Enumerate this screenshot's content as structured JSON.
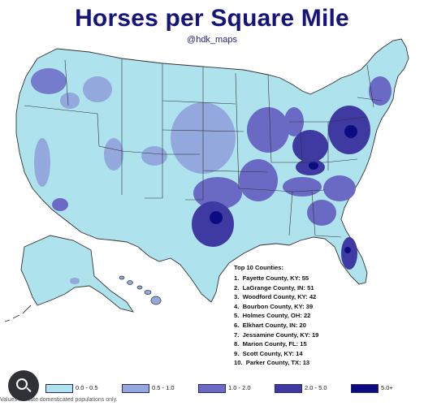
{
  "title": "Horses per Square Mile",
  "handle": "@hdk_maps",
  "top10": {
    "heading": "Top 10 Counties:",
    "items": [
      {
        "rank": "1.",
        "text": "Fayette County, KY: 55"
      },
      {
        "rank": "2.",
        "text": "LaGrange County, IN: 51"
      },
      {
        "rank": "3.",
        "text": "Woodford County, KY: 42"
      },
      {
        "rank": "4.",
        "text": "Bourbon County, KY: 39"
      },
      {
        "rank": "5.",
        "text": "Holmes County, OH: 22"
      },
      {
        "rank": "6.",
        "text": "Elkhart County, IN: 20"
      },
      {
        "rank": "7.",
        "text": "Jessamine County, KY: 19"
      },
      {
        "rank": "8.",
        "text": "Marion County, FL: 15"
      },
      {
        "rank": "9.",
        "text": "Scott County, KY: 14"
      },
      {
        "rank": "10.",
        "text": "Parker County, TX: 13"
      }
    ]
  },
  "legend": [
    {
      "label": "0.0 - 0.5",
      "color": "#aee3ee"
    },
    {
      "label": "0.5 - 1.0",
      "color": "#93a8dc"
    },
    {
      "label": "1.0 - 2.0",
      "color": "#6a6ac4"
    },
    {
      "label": "2.0 - 5.0",
      "color": "#3f3aa2"
    },
    {
      "label": "5.0+",
      "color": "#0c0c82"
    }
  ],
  "note": "Values indicate domesticated populations only.",
  "colors": {
    "title": "#14147a",
    "base": "#aee3ee",
    "borders": "#333333"
  },
  "icons": [
    "search-lens-icon"
  ]
}
